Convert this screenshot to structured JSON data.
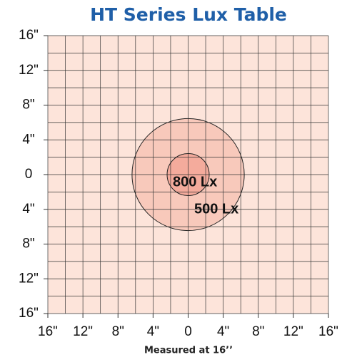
{
  "chart_data": {
    "type": "lux-zones",
    "title": "HT Series Lux Table",
    "footnote": "Measured at 16’’",
    "xlim": [
      -16,
      16
    ],
    "ylim": [
      -16,
      16
    ],
    "xticks": [
      {
        "value": -16,
        "label": "16\""
      },
      {
        "value": -12,
        "label": "12\""
      },
      {
        "value": -8,
        "label": "8\""
      },
      {
        "value": -4,
        "label": "4\""
      },
      0,
      {
        "value": 4,
        "label": "4\""
      },
      {
        "value": 8,
        "label": "8\""
      },
      {
        "value": 12,
        "label": "12\""
      },
      {
        "value": 16,
        "label": "16\""
      }
    ],
    "yticks": [
      {
        "value": -16,
        "label": "16\""
      },
      {
        "value": -12,
        "label": "12\""
      },
      {
        "value": -8,
        "label": "8\""
      },
      {
        "value": -4,
        "label": "4\""
      },
      0,
      {
        "value": 4,
        "label": "4\""
      },
      {
        "value": 8,
        "label": "8\""
      },
      {
        "value": 12,
        "label": "12\""
      },
      {
        "value": 16,
        "label": "16\""
      }
    ],
    "grid": true,
    "grid_step": 2,
    "background": "#fde4da",
    "zones": [
      {
        "label": "500 Lx",
        "radius": 6.4,
        "color": "#f8c9bb"
      },
      {
        "label": "800 Lx",
        "radius": 2.4,
        "color": "#f4ab9c"
      }
    ]
  }
}
